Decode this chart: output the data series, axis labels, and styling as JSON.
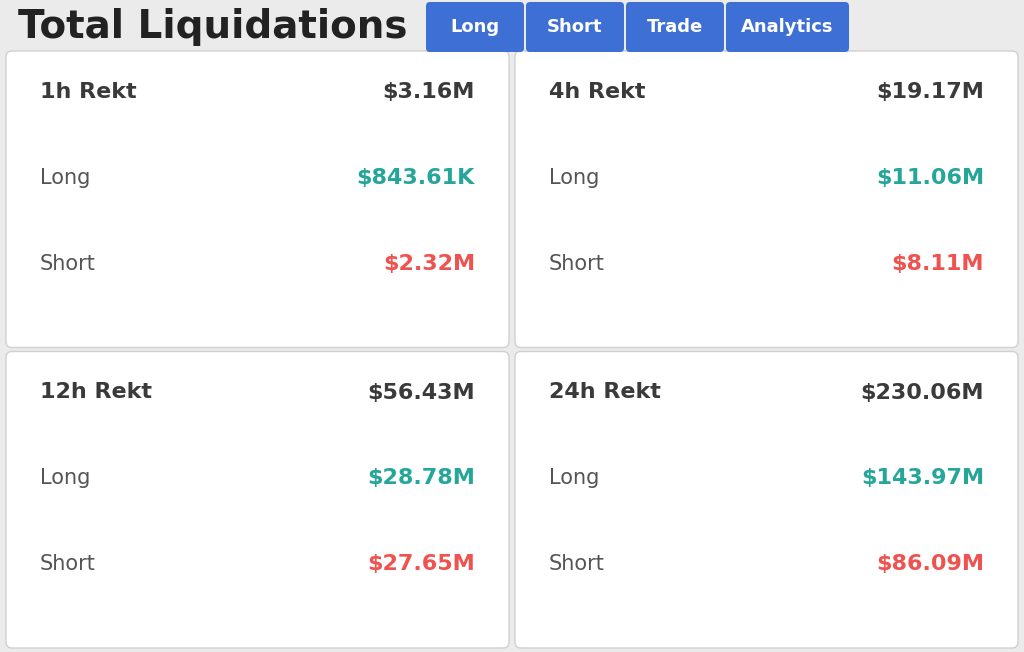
{
  "title": "Total Liquidations",
  "background_color": "#ebebeb",
  "card_bg": "#ffffff",
  "buttons": [
    "Long",
    "Short",
    "Trade",
    "Analytics"
  ],
  "button_color": "#3d6fd4",
  "button_text_color": "#ffffff",
  "cards": [
    {
      "period": "1h Rekt",
      "total": "$3.16M",
      "long_label": "Long",
      "long_value": "$843.61K",
      "short_label": "Short",
      "short_value": "$2.32M"
    },
    {
      "period": "4h Rekt",
      "total": "$19.17M",
      "long_label": "Long",
      "long_value": "$11.06M",
      "short_label": "Short",
      "short_value": "$8.11M"
    },
    {
      "period": "12h Rekt",
      "total": "$56.43M",
      "long_label": "Long",
      "long_value": "$28.78M",
      "short_label": "Short",
      "short_value": "$27.65M"
    },
    {
      "period": "24h Rekt",
      "total": "$230.06M",
      "long_label": "Long",
      "long_value": "$143.97M",
      "short_label": "Short",
      "short_value": "$86.09M"
    }
  ],
  "title_fontsize": 28,
  "title_fontweight": "bold",
  "period_fontsize": 16,
  "value_fontsize": 16,
  "label_fontsize": 15,
  "colored_value_fontsize": 16,
  "button_fontsize": 13,
  "total_color": "#222222",
  "period_color": "#3a3a3a",
  "label_color": "#555555",
  "long_color": "#26a69a",
  "short_color": "#ef5350"
}
